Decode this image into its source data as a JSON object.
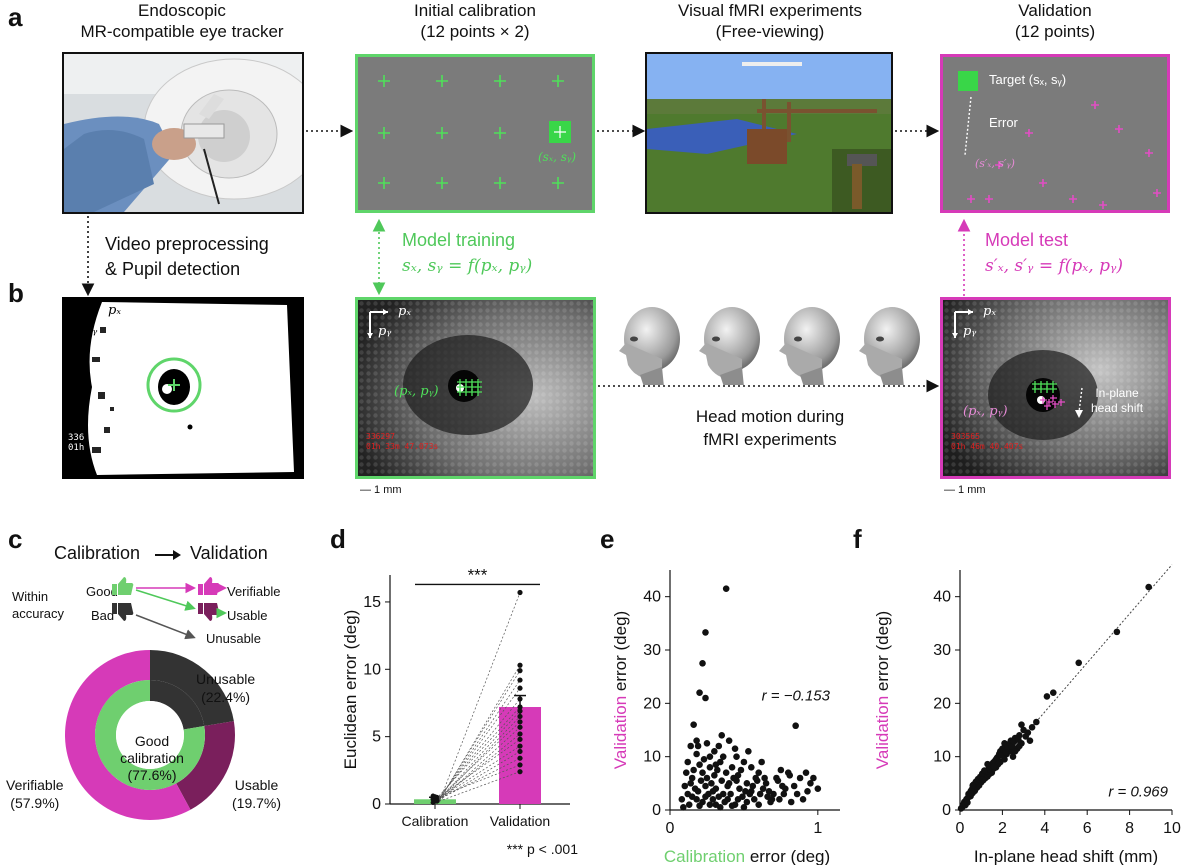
{
  "panel_labels": {
    "a": "a",
    "b": "b",
    "c": "c",
    "d": "d",
    "e": "e",
    "f": "f"
  },
  "row_a": {
    "col1_title": [
      "Endoscopic",
      "MR-compatible eye tracker"
    ],
    "col2_title": [
      "Initial calibration",
      "(12 points × 2)"
    ],
    "col3_title": [
      "Visual fMRI experiments",
      "(Free-viewing)"
    ],
    "col4_title": [
      "Validation",
      "(12 points)"
    ],
    "calib_point_label": "(sₓ, sᵧ)",
    "validation_target_label": "Target (sₓ, sᵧ)",
    "validation_error_label": "Error",
    "validation_pred_label": "(s′ₓ, s′ᵧ)"
  },
  "between": {
    "preproc": [
      "Video preprocessing",
      "& Pupil detection"
    ],
    "model_training_title": "Model training",
    "model_training_eq": "sₓ, sᵧ = f(pₓ, pᵧ)",
    "model_test_title": "Model test",
    "model_test_eq": "s′ₓ, s′ᵧ = f(pₓ, pᵧ)"
  },
  "row_b": {
    "axis_px": "pₓ",
    "axis_py": "pᵧ",
    "pupil_label": "(pₓ, pᵧ)",
    "overlay_b2": [
      "336297",
      "01h 33m 47.073s"
    ],
    "overlay_b4": [
      "303565",
      "01h 46m 40.407s"
    ],
    "overlay_b1": [
      "336",
      "01h"
    ],
    "head_motion": [
      "Head motion during",
      "fMRI experiments"
    ],
    "inplane": [
      "In-plane",
      "head shift"
    ],
    "scale": "— 1 mm"
  },
  "panel_c": {
    "title_left": "Calibration",
    "title_right": "Validation",
    "within": [
      "Within",
      "accuracy"
    ],
    "good": "Good",
    "bad": "Bad",
    "verifiable": "Verifiable",
    "usable": "Usable",
    "unusable": "Unusable",
    "colors": {
      "green": "#6fcf6f",
      "magenta": "#d63ab8",
      "dark": "#333333",
      "plum": "#7a1f5c"
    },
    "donut": {
      "inner": [
        {
          "name": "Good calibration",
          "value": 77.6
        },
        {
          "name": "Bad",
          "value": 22.4
        }
      ],
      "outer": [
        {
          "name": "Verifiable",
          "value": 57.9
        },
        {
          "name": "Usable",
          "value": 19.7
        },
        {
          "name": "Unusable",
          "value": 22.4
        }
      ],
      "labels": {
        "unusable": [
          "Unusable",
          "(22.4%)"
        ],
        "usable": [
          "Usable",
          "(19.7%)"
        ],
        "verifiable": [
          "Verifiable",
          "(57.9%)"
        ],
        "center": [
          "Good",
          "calibration",
          "(77.6%)"
        ]
      }
    }
  },
  "chart_data": [
    {
      "type": "bar",
      "panel": "d",
      "categories": [
        "Calibration",
        "Validation"
      ],
      "values": [
        0.35,
        7.2
      ],
      "errors": [
        0.15,
        0.85
      ],
      "ylabel": "Euclidean error (deg)",
      "xlabel": "",
      "ylim": [
        0,
        17
      ],
      "yticks": [
        0,
        5,
        10,
        15
      ],
      "significance": "***",
      "footnote": "*** p < .001",
      "validation_points": [
        15.7,
        10.3,
        9.9,
        9.2,
        8.6,
        7.8,
        7.2,
        6.9,
        6.5,
        6.1,
        5.7,
        5.2,
        4.8,
        4.3,
        3.9,
        3.4,
        2.9,
        2.4
      ],
      "calibration_points": [
        0.1,
        0.2,
        0.3,
        0.35,
        0.4,
        0.5,
        0.6,
        0.3,
        0.25,
        0.45,
        0.2,
        0.3,
        0.5,
        0.4,
        0.3,
        0.35,
        0.55,
        0.2
      ]
    },
    {
      "type": "scatter",
      "panel": "e",
      "xlabel_colored": "Calibration",
      "xlabel_rest": " error (deg)",
      "ylabel_colored": "Validation",
      "ylabel_rest": " error (deg)",
      "xlim": [
        0,
        1.15
      ],
      "ylim": [
        0,
        45
      ],
      "xticks": [
        0,
        1
      ],
      "yticks": [
        0,
        10,
        20,
        30,
        40
      ],
      "annotation": "r = −0.153",
      "points": [
        [
          0.38,
          41.5
        ],
        [
          0.24,
          33.3
        ],
        [
          0.22,
          27.5
        ],
        [
          0.2,
          22
        ],
        [
          0.24,
          21
        ],
        [
          0.16,
          16
        ],
        [
          0.18,
          13
        ],
        [
          0.85,
          15.8
        ],
        [
          0.14,
          12
        ],
        [
          0.25,
          12.5
        ],
        [
          0.3,
          11
        ],
        [
          0.33,
          12
        ],
        [
          0.4,
          13
        ],
        [
          0.36,
          10
        ],
        [
          0.18,
          10.5
        ],
        [
          0.45,
          10
        ],
        [
          0.12,
          9
        ],
        [
          0.2,
          8.5
        ],
        [
          0.27,
          8
        ],
        [
          0.34,
          9
        ],
        [
          0.42,
          8
        ],
        [
          0.5,
          9
        ],
        [
          0.55,
          8
        ],
        [
          0.6,
          7
        ],
        [
          0.22,
          7
        ],
        [
          0.3,
          6.5
        ],
        [
          0.38,
          7
        ],
        [
          0.46,
          6.5
        ],
        [
          0.15,
          6
        ],
        [
          0.21,
          5.5
        ],
        [
          0.28,
          5
        ],
        [
          0.35,
          5.5
        ],
        [
          0.43,
          6
        ],
        [
          0.52,
          5
        ],
        [
          0.58,
          6
        ],
        [
          0.65,
          5
        ],
        [
          0.72,
          6
        ],
        [
          0.8,
          7
        ],
        [
          0.88,
          6
        ],
        [
          0.95,
          5
        ],
        [
          0.1,
          4.5
        ],
        [
          0.17,
          4
        ],
        [
          0.24,
          4.5
        ],
        [
          0.31,
          4
        ],
        [
          0.39,
          4.5
        ],
        [
          0.47,
          4
        ],
        [
          0.55,
          3.5
        ],
        [
          0.63,
          4
        ],
        [
          0.7,
          3
        ],
        [
          0.78,
          4
        ],
        [
          0.86,
          3
        ],
        [
          0.12,
          3
        ],
        [
          0.19,
          3.5
        ],
        [
          0.26,
          3
        ],
        [
          0.33,
          2.5
        ],
        [
          0.41,
          3
        ],
        [
          0.49,
          2.5
        ],
        [
          0.57,
          2
        ],
        [
          0.66,
          2.5
        ],
        [
          0.74,
          2
        ],
        [
          0.82,
          1.5
        ],
        [
          0.9,
          2
        ],
        [
          0.08,
          2
        ],
        [
          0.15,
          2.5
        ],
        [
          0.22,
          1.5
        ],
        [
          0.29,
          2
        ],
        [
          0.37,
          1.5
        ],
        [
          0.44,
          1
        ],
        [
          0.52,
          1.5
        ],
        [
          0.6,
          1
        ],
        [
          0.68,
          1.5
        ],
        [
          0.13,
          1
        ],
        [
          0.2,
          0.8
        ],
        [
          0.27,
          1
        ],
        [
          0.34,
          0.5
        ],
        [
          0.42,
          0.8
        ],
        [
          0.5,
          0.5
        ],
        [
          0.09,
          0.5
        ],
        [
          0.16,
          7.5
        ],
        [
          0.23,
          9.5
        ],
        [
          0.31,
          8.5
        ],
        [
          0.4,
          5
        ],
        [
          0.48,
          7.5
        ],
        [
          0.56,
          4.5
        ],
        [
          0.64,
          6
        ],
        [
          0.73,
          5.5
        ],
        [
          0.81,
          6.5
        ],
        [
          0.92,
          7
        ],
        [
          1.0,
          4
        ],
        [
          0.97,
          6
        ],
        [
          0.75,
          7.5
        ],
        [
          0.62,
          9
        ],
        [
          0.53,
          11
        ],
        [
          0.44,
          11.5
        ],
        [
          0.35,
          14
        ],
        [
          0.27,
          10
        ],
        [
          0.19,
          12
        ],
        [
          0.11,
          7
        ],
        [
          0.14,
          5
        ],
        [
          0.25,
          6
        ],
        [
          0.32,
          7.5
        ],
        [
          0.29,
          3.5
        ],
        [
          0.36,
          3
        ],
        [
          0.45,
          5.5
        ],
        [
          0.51,
          3.5
        ],
        [
          0.59,
          5.5
        ],
        [
          0.67,
          3.5
        ],
        [
          0.76,
          4.5
        ],
        [
          0.84,
          4.5
        ],
        [
          0.93,
          3.5
        ],
        [
          0.18,
          2
        ],
        [
          0.24,
          2.5
        ],
        [
          0.31,
          1
        ],
        [
          0.39,
          2
        ],
        [
          0.46,
          2
        ],
        [
          0.54,
          3
        ],
        [
          0.61,
          3
        ],
        [
          0.69,
          2
        ],
        [
          0.77,
          3
        ]
      ]
    },
    {
      "type": "scatter",
      "panel": "f",
      "xlabel": "In-plane head shift (mm)",
      "ylabel_colored": "Validation",
      "ylabel_rest": " error (deg)",
      "xlim": [
        0,
        10
      ],
      "ylim": [
        0,
        45
      ],
      "xticks": [
        0,
        2,
        4,
        6,
        8,
        10
      ],
      "yticks": [
        0,
        10,
        20,
        30,
        40
      ],
      "annotation": "r = 0.969",
      "points": [
        [
          8.9,
          41.8
        ],
        [
          7.4,
          33.4
        ],
        [
          5.6,
          27.6
        ],
        [
          4.4,
          22
        ],
        [
          4.1,
          21.3
        ],
        [
          3.6,
          16.5
        ],
        [
          2.9,
          16
        ],
        [
          3.0,
          15
        ],
        [
          2.8,
          14
        ],
        [
          2.6,
          13.5
        ],
        [
          2.4,
          13
        ],
        [
          2.3,
          12
        ],
        [
          2.1,
          12.5
        ],
        [
          2.0,
          11.5
        ],
        [
          1.9,
          11
        ],
        [
          2.2,
          10.5
        ],
        [
          1.8,
          10
        ],
        [
          1.7,
          9.5
        ],
        [
          2.5,
          10
        ],
        [
          2.7,
          11.5
        ],
        [
          1.6,
          9
        ],
        [
          1.5,
          8.5
        ],
        [
          1.4,
          8
        ],
        [
          1.3,
          7.5
        ],
        [
          1.6,
          7.8
        ],
        [
          1.2,
          7
        ],
        [
          1.1,
          6.5
        ],
        [
          1.0,
          6
        ],
        [
          1.3,
          6.3
        ],
        [
          0.9,
          5.5
        ],
        [
          0.8,
          5
        ],
        [
          1.0,
          5.2
        ],
        [
          0.7,
          4.5
        ],
        [
          0.6,
          4
        ],
        [
          0.8,
          4.2
        ],
        [
          0.5,
          3.5
        ],
        [
          0.6,
          3.2
        ],
        [
          0.4,
          3
        ],
        [
          0.5,
          2.6
        ],
        [
          0.35,
          2.2
        ],
        [
          0.3,
          2
        ],
        [
          0.25,
          1.6
        ],
        [
          0.2,
          1.2
        ],
        [
          0.15,
          0.8
        ],
        [
          0.1,
          0.5
        ],
        [
          0.05,
          0.3
        ],
        [
          1.9,
          9
        ],
        [
          2.1,
          9.5
        ],
        [
          1.7,
          8
        ],
        [
          1.5,
          7
        ],
        [
          2.4,
          11
        ],
        [
          2.6,
          11
        ],
        [
          3.2,
          14.5
        ],
        [
          3.3,
          13
        ],
        [
          2.9,
          12.5
        ],
        [
          1.2,
          6
        ],
        [
          1.4,
          6.8
        ],
        [
          0.9,
          4.6
        ],
        [
          1.1,
          5.6
        ],
        [
          0.7,
          3.6
        ],
        [
          0.45,
          2.9
        ],
        [
          0.55,
          3.8
        ],
        [
          0.65,
          4.8
        ],
        [
          0.75,
          5.3
        ],
        [
          0.85,
          5.8
        ],
        [
          0.95,
          6.2
        ],
        [
          1.05,
          6.8
        ],
        [
          1.25,
          7.2
        ],
        [
          1.35,
          7.6
        ],
        [
          1.45,
          8.2
        ],
        [
          1.55,
          8.8
        ],
        [
          1.65,
          9.2
        ],
        [
          1.75,
          9.8
        ],
        [
          1.85,
          10.5
        ],
        [
          2.05,
          11
        ],
        [
          2.25,
          11.8
        ],
        [
          2.35,
          12.5
        ],
        [
          2.45,
          12
        ],
        [
          2.55,
          12.8
        ],
        [
          2.75,
          13.2
        ],
        [
          3.1,
          13.8
        ],
        [
          3.4,
          15.5
        ],
        [
          0.2,
          1.5
        ],
        [
          0.3,
          1.8
        ],
        [
          0.4,
          2.4
        ],
        [
          0.15,
          1
        ],
        [
          0.25,
          0.9
        ],
        [
          0.35,
          1.4
        ],
        [
          1.15,
          7.4
        ],
        [
          1.95,
          10.2
        ],
        [
          2.15,
          10.8
        ],
        [
          0.6,
          4.6
        ],
        [
          0.5,
          3.1
        ],
        [
          1.3,
          8.6
        ],
        [
          2.8,
          12
        ],
        [
          1.8,
          8.6
        ],
        [
          1.6,
          8.2
        ]
      ]
    }
  ]
}
